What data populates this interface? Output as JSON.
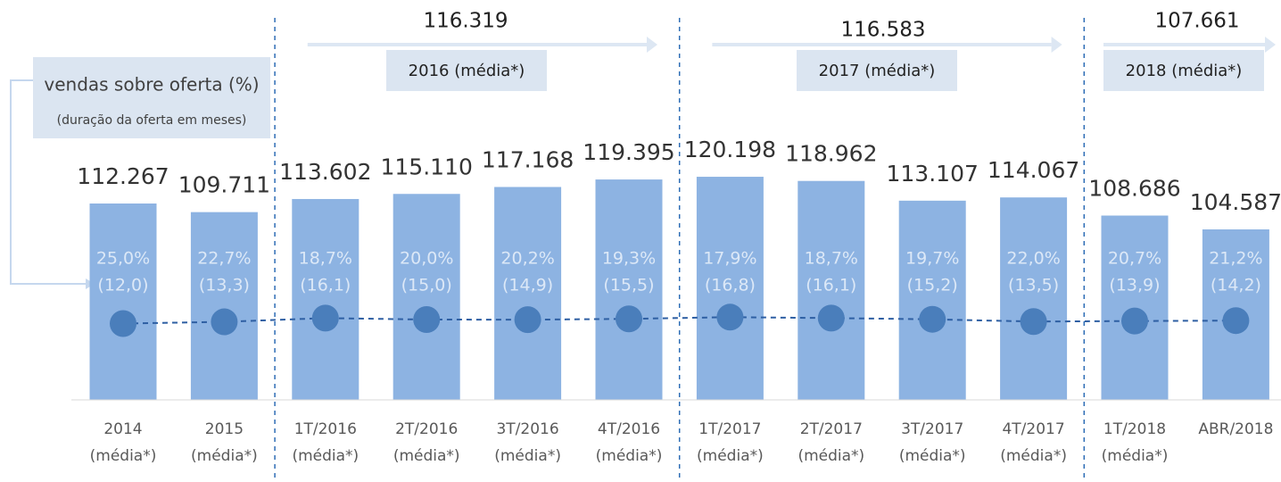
{
  "chart_data": {
    "type": "bar",
    "categories": [
      [
        "2014",
        "(média*)"
      ],
      [
        "2015",
        "(média*)"
      ],
      [
        "1T/2016",
        "(média*)"
      ],
      [
        "2T/2016",
        "(média*)"
      ],
      [
        "3T/2016",
        "(média*)"
      ],
      [
        "4T/2016",
        "(média*)"
      ],
      [
        "1T/2017",
        "(média*)"
      ],
      [
        "2T/2017",
        "(média*)"
      ],
      [
        "3T/2017",
        "(média*)"
      ],
      [
        "4T/2017",
        "(média*)"
      ],
      [
        "1T/2018",
        "(média*)"
      ],
      [
        "ABR/2018"
      ]
    ],
    "ylim": [
      54000,
      170000
    ],
    "y2lim": [
      -45,
      247
    ],
    "series": [
      {
        "color": "#8db3e2",
        "values": [
          112267,
          109711,
          113602,
          115110,
          117168,
          119395,
          120198,
          118962,
          113107,
          114067,
          108686,
          104587
        ],
        "value_labels": [
          "112.267",
          "109.711",
          "113.602",
          "115.110",
          "117.168",
          "119.395",
          "120.198",
          "118.962",
          "113.107",
          "114.067",
          "108.686",
          "104.587"
        ]
      },
      {
        "name": "vendas sobre oferta (%)",
        "color": "#dce8f7",
        "values": [
          25.0,
          22.7,
          18.7,
          20.0,
          20.2,
          19.3,
          17.9,
          18.7,
          19.7,
          22.0,
          20.7,
          21.2
        ],
        "value_labels": [
          "25,0%",
          "22,7%",
          "18,7%",
          "20,0%",
          "20,2%",
          "19,3%",
          "17,9%",
          "18,7%",
          "19,7%",
          "22,0%",
          "20,7%",
          "21,2%"
        ]
      },
      {
        "name": "(duração da oferta em meses)",
        "color": "#4a7ebb",
        "axis": "y2",
        "values": [
          12.0,
          13.3,
          16.1,
          15.0,
          14.9,
          15.5,
          16.8,
          16.1,
          15.2,
          13.5,
          13.9,
          14.2
        ],
        "value_labels": [
          "(12,0)",
          "(13,3)",
          "(16,1)",
          "(15,0)",
          "(14,9)",
          "(15,5)",
          "(16,8)",
          "(16,1)",
          "(15,2)",
          "(13,5)",
          "(13,9)",
          "(14,2)"
        ]
      }
    ],
    "periods": [
      {
        "label": "2016 (média*)",
        "value": 116319,
        "value_label": "116.319"
      },
      {
        "label": "2017 (média*)",
        "value": 116583,
        "value_label": "116.583"
      },
      {
        "label": "2018 (média*)",
        "value": 107661,
        "value_label": "107.661"
      }
    ]
  }
}
